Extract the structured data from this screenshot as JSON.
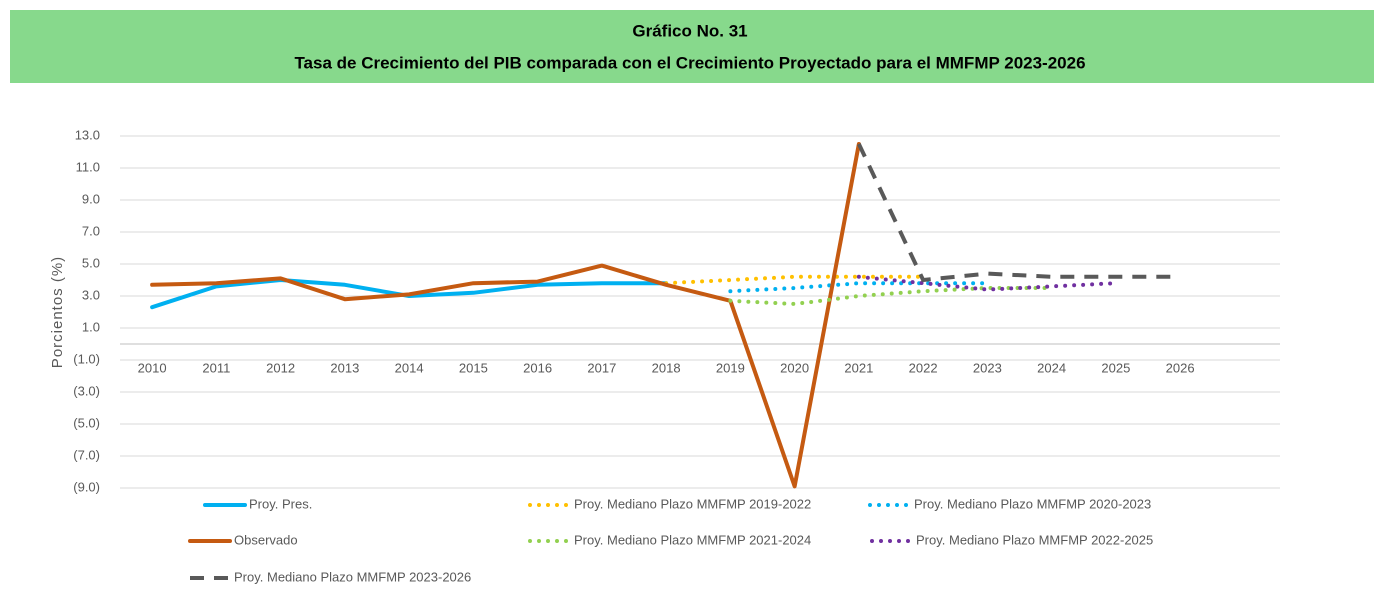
{
  "chart_data": {
    "type": "line",
    "title": "Gráfico No. 31",
    "subtitle": "Tasa de Crecimiento del PIB comparada con el Crecimiento Proyectado para el MMFMP 2023-2026",
    "y_label": "Porcientos  (%)",
    "categories": [
      "2010",
      "2011",
      "2012",
      "2013",
      "2014",
      "2015",
      "2016",
      "2017",
      "2018",
      "2019",
      "2020",
      "2021",
      "2022",
      "2023",
      "2024",
      "2025",
      "2026"
    ],
    "ylim": [
      -9,
      13
    ],
    "yticks": [
      {
        "value": 13,
        "label": "13.0"
      },
      {
        "value": 11,
        "label": "11.0"
      },
      {
        "value": 9,
        "label": "9.0"
      },
      {
        "value": 7,
        "label": "7.0"
      },
      {
        "value": 5,
        "label": "5.0"
      },
      {
        "value": 3,
        "label": "3.0"
      },
      {
        "value": 1,
        "label": "1.0"
      },
      {
        "value": -1,
        "label": "(1.0)"
      },
      {
        "value": -3,
        "label": "(3.0)"
      },
      {
        "value": -5,
        "label": "(5.0)"
      },
      {
        "value": -7,
        "label": "(7.0)"
      },
      {
        "value": -9,
        "label": "(9.0)"
      }
    ],
    "grid": true,
    "legend": "bottom",
    "series": [
      {
        "name": "Proy. Pres.",
        "color": "#00b0f0",
        "style": "solid",
        "values": [
          2.3,
          3.6,
          4.0,
          3.7,
          3.0,
          3.2,
          3.7,
          3.8,
          3.8,
          null,
          null,
          null,
          null,
          null,
          null,
          null,
          null
        ]
      },
      {
        "name": "Proy. Mediano Plazo MMFMP 2019-2022",
        "color": "#ffc000",
        "style": "dotted",
        "values": [
          null,
          null,
          null,
          null,
          null,
          null,
          null,
          null,
          3.8,
          4.0,
          4.2,
          4.2,
          4.2,
          null,
          null,
          null,
          null
        ]
      },
      {
        "name": "Proy. Mediano Plazo MMFMP 2020-2023",
        "color": "#00b0f0",
        "style": "dotted",
        "values": [
          null,
          null,
          null,
          null,
          null,
          null,
          null,
          null,
          null,
          3.3,
          3.5,
          3.8,
          3.8,
          3.8,
          null,
          null,
          null
        ]
      },
      {
        "name": "Observado",
        "color": "#c55a11",
        "style": "solid",
        "values": [
          3.7,
          3.8,
          4.1,
          2.8,
          3.1,
          3.8,
          3.9,
          4.9,
          3.7,
          2.7,
          -8.9,
          12.5,
          null,
          null,
          null,
          null,
          null
        ]
      },
      {
        "name": "Proy. Mediano Plazo MMFMP 2021-2024",
        "color": "#92d050",
        "style": "dotted",
        "values": [
          null,
          null,
          null,
          null,
          null,
          null,
          null,
          null,
          null,
          2.7,
          2.5,
          3.0,
          3.3,
          3.5,
          3.5,
          null,
          null
        ]
      },
      {
        "name": "Proy. Mediano Plazo MMFMP 2022-2025",
        "color": "#7030a0",
        "style": "dotted",
        "values": [
          null,
          null,
          null,
          null,
          null,
          null,
          null,
          null,
          null,
          null,
          null,
          4.2,
          3.8,
          3.4,
          3.6,
          3.8,
          null
        ]
      },
      {
        "name": "Proy. Mediano Plazo MMFMP 2023-2026",
        "color": "#595959",
        "style": "dashed",
        "values": [
          null,
          null,
          null,
          null,
          null,
          null,
          null,
          null,
          null,
          null,
          null,
          12.5,
          4.0,
          4.4,
          4.2,
          4.2,
          4.2
        ]
      }
    ]
  }
}
